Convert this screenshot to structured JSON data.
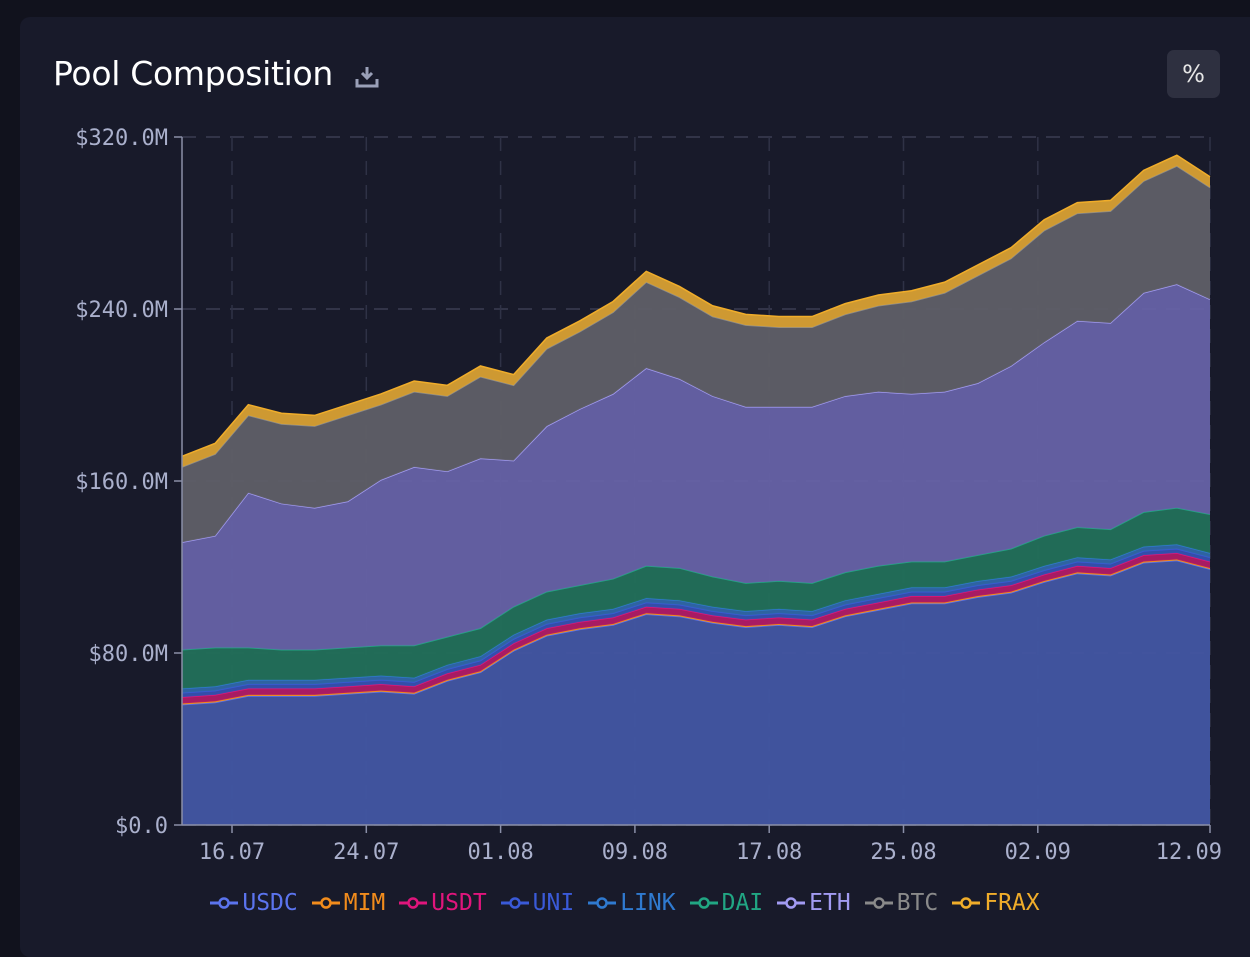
{
  "header": {
    "title": "Pool Composition",
    "percent_label": "%"
  },
  "legend": [
    {
      "name": "USDC",
      "color": "#5b74ee"
    },
    {
      "name": "MIM",
      "color": "#f28c1c"
    },
    {
      "name": "USDT",
      "color": "#e0157c"
    },
    {
      "name": "UNI",
      "color": "#3a5ad8"
    },
    {
      "name": "LINK",
      "color": "#2f7ad0"
    },
    {
      "name": "DAI",
      "color": "#21a683"
    },
    {
      "name": "ETH",
      "color": "#a29bf2"
    },
    {
      "name": "BTC",
      "color": "#8a8a8a"
    },
    {
      "name": "FRAX",
      "color": "#f0ad2a"
    }
  ],
  "chart_data": {
    "type": "area",
    "stacked": true,
    "x_tick_labels": [
      "16.07",
      "24.07",
      "01.08",
      "09.08",
      "17.08",
      "25.08",
      "02.09",
      "12.09"
    ],
    "y_tick_labels": [
      "$0.0",
      "$80.0M",
      "$160.0M",
      "$240.0M",
      "$320.0M"
    ],
    "ylim": [
      0,
      320
    ],
    "y_unit": "M USD",
    "grid": true,
    "legend_position": "bottom",
    "x": [
      "13.07",
      "15.07",
      "17.07",
      "19.07",
      "21.07",
      "23.07",
      "25.07",
      "27.07",
      "29.07",
      "31.07",
      "02.08",
      "04.08",
      "06.08",
      "08.08",
      "10.08",
      "12.08",
      "14.08",
      "16.08",
      "18.08",
      "20.08",
      "22.08",
      "24.08",
      "26.08",
      "28.08",
      "30.08",
      "01.09",
      "03.09",
      "05.09",
      "07.09",
      "09.09",
      "11.09",
      "12.09"
    ],
    "series": [
      {
        "name": "USDC",
        "color": "#5b74ee",
        "fill": "#4256a3",
        "values": [
          56,
          57,
          60,
          60,
          60,
          61,
          62,
          61,
          67,
          71,
          81,
          88,
          91,
          93,
          98,
          97,
          94,
          92,
          93,
          92,
          97,
          100,
          103,
          103,
          106,
          108,
          113,
          117,
          116,
          122,
          123,
          119
        ]
      },
      {
        "name": "MIM",
        "color": "#f28c1c",
        "fill": "#e58a26",
        "values": [
          0.5,
          0.5,
          0.5,
          0.5,
          0.5,
          0.5,
          0.5,
          0.5,
          0.5,
          0.5,
          0.5,
          0.5,
          0.5,
          0.5,
          0.5,
          0.5,
          0.5,
          0.5,
          0.5,
          0.5,
          0.5,
          0.5,
          0.5,
          0.5,
          0.5,
          0.5,
          0.5,
          0.5,
          0.5,
          0.5,
          0.5,
          0.5
        ]
      },
      {
        "name": "USDT",
        "color": "#e0157c",
        "fill": "#b01b66",
        "values": [
          3,
          3,
          3,
          3,
          3,
          3,
          3,
          3,
          3,
          3,
          3,
          3,
          3,
          3,
          3,
          3,
          3,
          3,
          3,
          3,
          3,
          3,
          3,
          3,
          3,
          3,
          3,
          3,
          3,
          3,
          3,
          3
        ]
      },
      {
        "name": "UNI",
        "color": "#3a5ad8",
        "fill": "#3551b0",
        "values": [
          2,
          2,
          2,
          2,
          2,
          2,
          2,
          2,
          2,
          2,
          2,
          2,
          2,
          2,
          2,
          2,
          2,
          2,
          2,
          2,
          2,
          2,
          2,
          2,
          2,
          2,
          2,
          2,
          2,
          2,
          2,
          2
        ]
      },
      {
        "name": "LINK",
        "color": "#2f7ad0",
        "fill": "#2f67a8",
        "values": [
          2,
          2,
          2,
          2,
          2,
          2,
          2,
          2,
          2,
          2,
          2,
          2,
          2,
          2,
          2,
          2,
          2,
          2,
          2,
          2,
          2,
          2,
          2,
          2,
          2,
          2,
          2,
          2,
          2,
          2,
          2,
          2
        ]
      },
      {
        "name": "DAI",
        "color": "#21a683",
        "fill": "#22705a",
        "values": [
          18,
          18,
          15,
          14,
          14,
          14,
          14,
          15,
          13,
          13,
          13,
          13,
          13,
          14,
          15,
          15,
          14,
          13,
          13,
          13,
          13,
          13,
          12,
          12,
          12,
          13,
          14,
          14,
          14,
          16,
          17,
          18
        ]
      },
      {
        "name": "ETH",
        "color": "#a29bf2",
        "fill": "#6662a6",
        "values": [
          50,
          52,
          72,
          68,
          66,
          68,
          77,
          83,
          77,
          79,
          68,
          77,
          82,
          86,
          92,
          88,
          84,
          82,
          81,
          82,
          82,
          81,
          78,
          79,
          80,
          85,
          90,
          96,
          96,
          102,
          104,
          100
        ]
      },
      {
        "name": "BTC",
        "color": "#8a8a8a",
        "fill": "#5f5f67",
        "values": [
          35,
          38,
          36,
          37,
          38,
          40,
          35,
          35,
          35,
          38,
          35,
          36,
          36,
          38,
          40,
          38,
          37,
          38,
          37,
          37,
          38,
          40,
          43,
          46,
          50,
          50,
          52,
          50,
          52,
          52,
          55,
          52
        ]
      },
      {
        "name": "FRAX",
        "color": "#f0ad2a",
        "fill": "#d8a033",
        "values": [
          5,
          5,
          5,
          5,
          5,
          5,
          5,
          5,
          5,
          5,
          5,
          5,
          5,
          5,
          5,
          5,
          5,
          5,
          5,
          5,
          5,
          5,
          5,
          5,
          5,
          5,
          5,
          5,
          5,
          5,
          5,
          5
        ]
      }
    ]
  }
}
